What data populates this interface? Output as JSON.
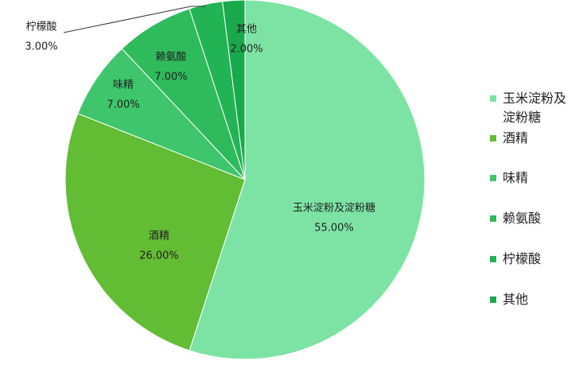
{
  "chart_data": {
    "type": "pie",
    "categories": [
      "玉米淀粉及淀粉糖",
      "酒精",
      "味精",
      "赖氨酸",
      "柠檬酸",
      "其他"
    ],
    "values": [
      55,
      26,
      7,
      7,
      3,
      2
    ],
    "value_labels": [
      "55.00%",
      "26.00%",
      "7.00%",
      "7.00%",
      "3.00%",
      "2.00%"
    ],
    "colors": [
      "#7de3a5",
      "#62bd35",
      "#3fc66c",
      "#2fba5c",
      "#22b354",
      "#1aa84c"
    ],
    "legend": "right"
  }
}
